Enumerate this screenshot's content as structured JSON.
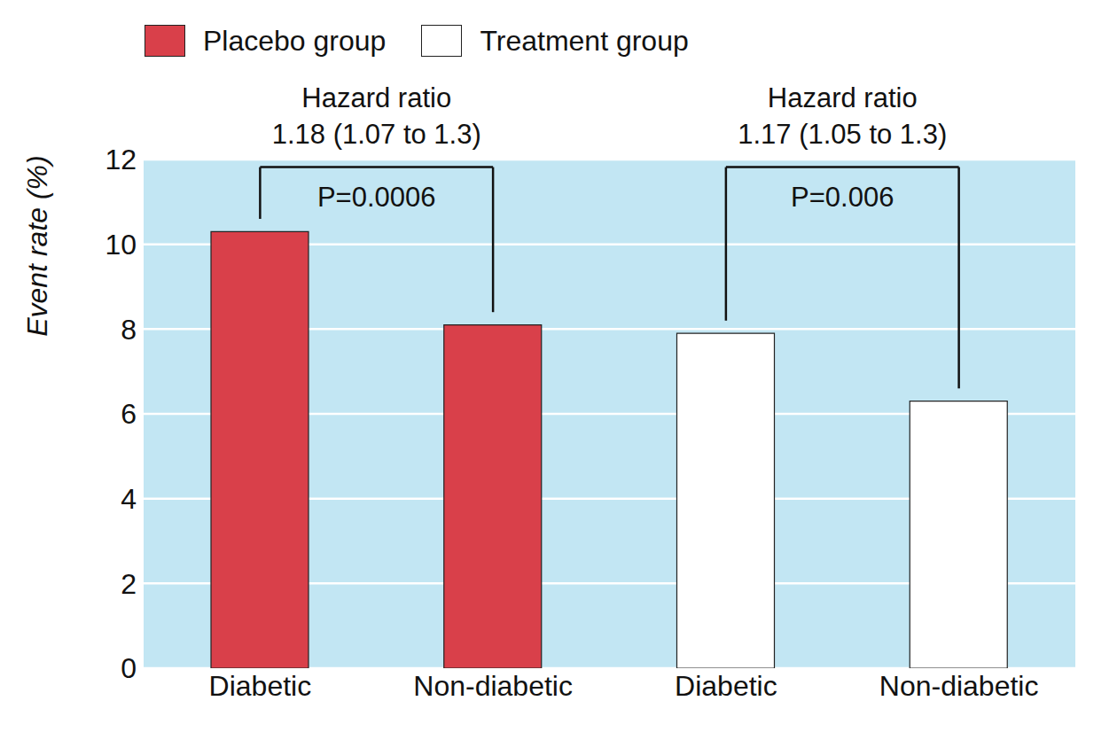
{
  "chart_data": {
    "type": "bar",
    "categories": [
      "Diabetic",
      "Non-diabetic",
      "Diabetic",
      "Non-diabetic"
    ],
    "series": [
      {
        "name": "Placebo group",
        "color": "#d9404a",
        "values": [
          10.3,
          8.1,
          null,
          null
        ]
      },
      {
        "name": "Treatment group",
        "color": "#ffffff",
        "values": [
          null,
          null,
          7.9,
          6.3
        ]
      }
    ],
    "y_label": "Event rate (%)",
    "ylim": [
      0,
      12
    ],
    "yticks": [
      0,
      2,
      4,
      6,
      8,
      10,
      12
    ],
    "grid": true,
    "legend": "top left",
    "annotations": [
      {
        "between": [
          0,
          1
        ],
        "title": "Hazard ratio",
        "hazard_ratio": "1.18 (1.07 to 1.3)",
        "p_value": "P=0.0006"
      },
      {
        "between": [
          2,
          3
        ],
        "title": "Hazard ratio",
        "hazard_ratio": "1.17 (1.05 to 1.3)",
        "p_value": "P=0.006"
      }
    ]
  }
}
